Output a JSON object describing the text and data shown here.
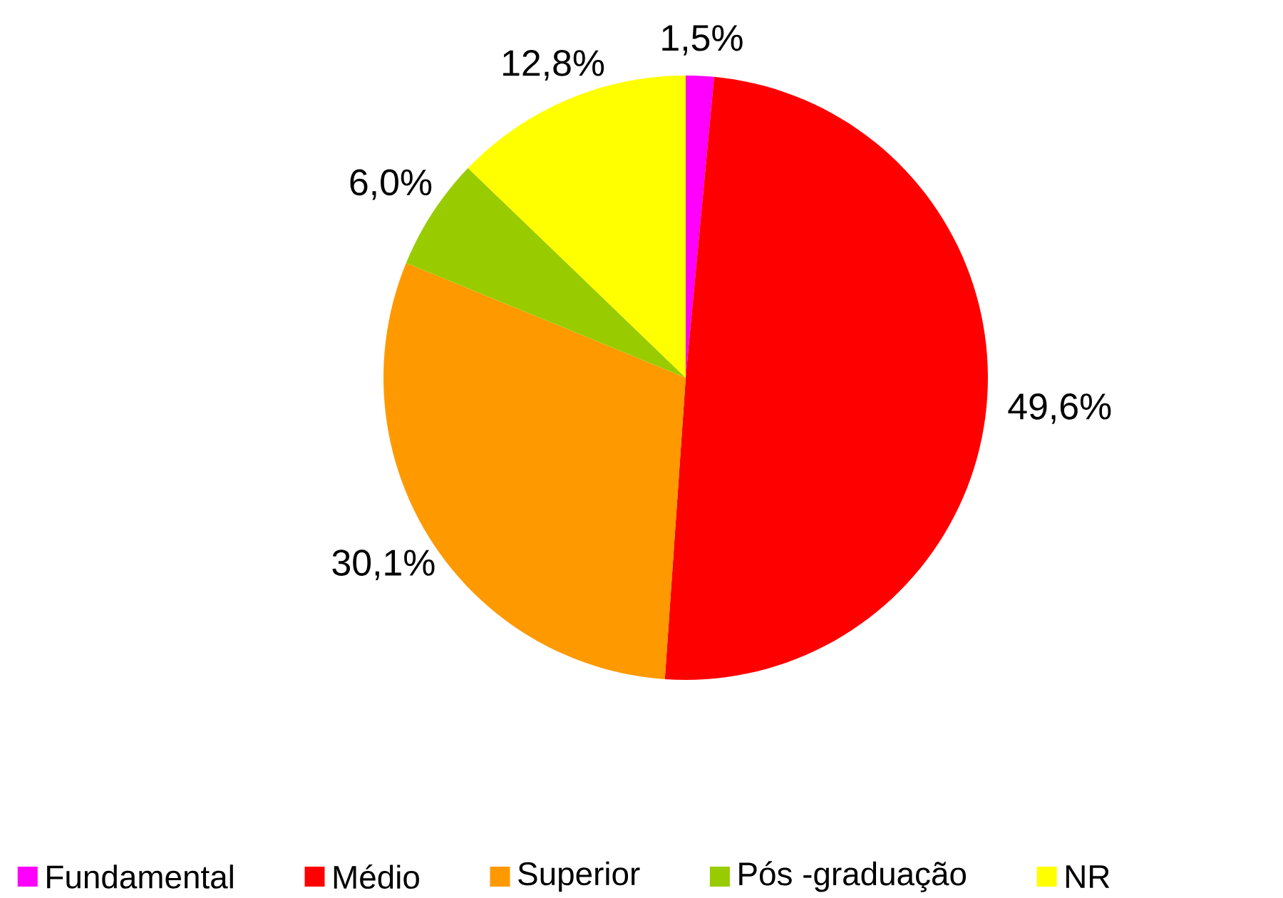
{
  "chart_data": {
    "type": "pie",
    "categories": [
      "Fundamental",
      "Médio",
      "Superior",
      "Pós -graduação",
      "NR"
    ],
    "values": [
      1.5,
      49.6,
      30.1,
      6.0,
      12.8
    ],
    "colors": [
      "#ff00ff",
      "#ff0000",
      "#ff9900",
      "#99cc00",
      "#ffff00"
    ],
    "value_labels": [
      "1,5%",
      "49,6%",
      "30,1%",
      "6,0%",
      "12,8%"
    ],
    "legend": "bottom"
  }
}
